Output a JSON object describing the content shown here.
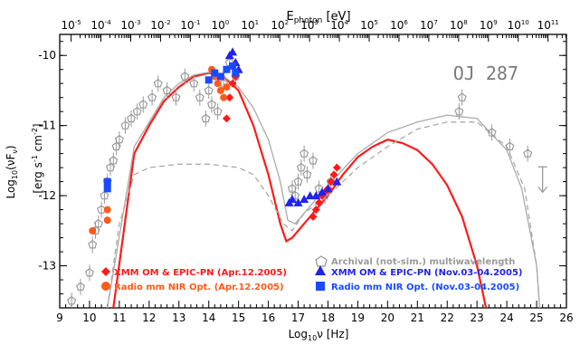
{
  "chart_data": {
    "type": "scatter",
    "title": "OJ 287",
    "xlabel": "Log10 ν [Hz]",
    "ylabel": "Log10(ν Fν) [erg s^-1 cm^-2]",
    "top_xlabel": "E_photon [eV]",
    "xlim": [
      9,
      26
    ],
    "ylim": [
      -13.6,
      -9.7
    ],
    "x_ticks": [
      9,
      10,
      11,
      12,
      13,
      14,
      15,
      16,
      17,
      18,
      19,
      20,
      21,
      22,
      23,
      24,
      25,
      26
    ],
    "y_ticks": [
      -10,
      -11,
      -12,
      -13
    ],
    "top_ticks": [
      "10^-5",
      "10^-4",
      "10^-3",
      "10^-2",
      "10^-1",
      "10^0",
      "10^1",
      "10^2",
      "10^3",
      "10^4",
      "10^5",
      "10^6",
      "10^7",
      "10^8",
      "10^9",
      "10^10",
      "10^11"
    ],
    "legend": [
      {
        "label": "Archival (not-sim.) multiwavelength",
        "color": "#9a9a9a",
        "marker": "pentagon"
      },
      {
        "label": "XMM OM & EPIC-PN (Apr.12.2005)",
        "color": "#ff1a1a",
        "marker": "diamond"
      },
      {
        "label": "Radio mm NIR Opt. (Apr.12.2005)",
        "color": "#ff5a1a",
        "marker": "circle"
      },
      {
        "label": "XMM OM & EPIC-PN (Nov.03-04.2005)",
        "color": "#2222ee",
        "marker": "triangle"
      },
      {
        "label": "Radio mm NIR Opt. (Nov.03-04.2005)",
        "color": "#1a4aff",
        "marker": "square"
      }
    ],
    "series": [
      {
        "name": "Archival (not-sim.) multiwavelength",
        "points": [
          [
            9.4,
            -13.5
          ],
          [
            9.7,
            -13.3
          ],
          [
            10.0,
            -13.1
          ],
          [
            10.1,
            -12.7
          ],
          [
            10.2,
            -12.5
          ],
          [
            10.3,
            -12.4
          ],
          [
            10.4,
            -12.2
          ],
          [
            10.5,
            -12.0
          ],
          [
            10.6,
            -11.8
          ],
          [
            10.7,
            -11.6
          ],
          [
            10.8,
            -11.5
          ],
          [
            10.9,
            -11.3
          ],
          [
            11.0,
            -11.2
          ],
          [
            11.2,
            -11.0
          ],
          [
            11.4,
            -10.9
          ],
          [
            11.6,
            -10.8
          ],
          [
            11.8,
            -10.7
          ],
          [
            12.1,
            -10.6
          ],
          [
            12.3,
            -10.4
          ],
          [
            12.6,
            -10.5
          ],
          [
            12.9,
            -10.6
          ],
          [
            13.2,
            -10.3
          ],
          [
            13.5,
            -10.4
          ],
          [
            13.7,
            -10.6
          ],
          [
            13.9,
            -10.9
          ],
          [
            14.0,
            -10.5
          ],
          [
            14.1,
            -10.7
          ],
          [
            14.3,
            -10.8
          ],
          [
            14.5,
            -10.4
          ],
          [
            14.7,
            -10.1
          ],
          [
            14.9,
            -10.3
          ],
          [
            16.8,
            -11.9
          ],
          [
            16.9,
            -12.0
          ],
          [
            17.0,
            -11.8
          ],
          [
            17.1,
            -11.6
          ],
          [
            17.2,
            -11.4
          ],
          [
            17.3,
            -11.7
          ],
          [
            17.5,
            -11.5
          ],
          [
            17.7,
            -11.9
          ],
          [
            17.9,
            -12.0
          ],
          [
            18.1,
            -11.8
          ],
          [
            22.4,
            -10.8
          ],
          [
            22.5,
            -10.6
          ],
          [
            23.5,
            -11.1
          ],
          [
            24.1,
            -11.3
          ],
          [
            24.7,
            -11.4
          ]
        ]
      },
      {
        "name": "XMM OM & EPIC-PN (Apr.12.2005)",
        "points": [
          [
            14.6,
            -10.9
          ],
          [
            14.7,
            -10.6
          ],
          [
            14.8,
            -10.4
          ],
          [
            14.9,
            -10.3
          ],
          [
            17.5,
            -12.3
          ],
          [
            17.6,
            -12.2
          ],
          [
            17.7,
            -12.1
          ],
          [
            17.8,
            -12.0
          ],
          [
            17.9,
            -11.95
          ],
          [
            18.0,
            -11.9
          ],
          [
            18.1,
            -11.8
          ],
          [
            18.2,
            -11.7
          ],
          [
            18.3,
            -11.6
          ]
        ]
      },
      {
        "name": "Radio mm NIR Opt. (Apr.12.2005)",
        "points": [
          [
            10.1,
            -12.5
          ],
          [
            10.6,
            -12.2
          ],
          [
            10.6,
            -12.35
          ],
          [
            14.1,
            -10.2
          ],
          [
            14.2,
            -10.3
          ],
          [
            14.3,
            -10.4
          ],
          [
            14.4,
            -10.5
          ],
          [
            14.5,
            -10.6
          ],
          [
            14.6,
            -10.45
          ]
        ]
      },
      {
        "name": "XMM OM & EPIC-PN (Nov.03-04.2005)",
        "points": [
          [
            14.7,
            -10.0
          ],
          [
            14.8,
            -9.95
          ],
          [
            14.9,
            -10.1
          ],
          [
            15.0,
            -10.2
          ],
          [
            16.7,
            -12.1
          ],
          [
            16.8,
            -12.05
          ],
          [
            17.0,
            -12.1
          ],
          [
            17.2,
            -12.05
          ],
          [
            17.4,
            -12.0
          ],
          [
            17.6,
            -12.0
          ],
          [
            17.8,
            -11.95
          ],
          [
            18.0,
            -11.9
          ],
          [
            18.3,
            -11.8
          ]
        ]
      },
      {
        "name": "Radio mm NIR Opt. (Nov.03-04.2005)",
        "points": [
          [
            10.6,
            -11.9
          ],
          [
            10.6,
            -11.8
          ],
          [
            14.0,
            -10.35
          ],
          [
            14.2,
            -10.25
          ],
          [
            14.4,
            -10.3
          ],
          [
            14.6,
            -10.2
          ],
          [
            14.8,
            -10.15
          ],
          [
            14.9,
            -10.25
          ]
        ]
      }
    ],
    "models": [
      {
        "color": "#ff1a1a",
        "style": "solid",
        "points": [
          [
            10.8,
            -13.6
          ],
          [
            11.5,
            -11.4
          ],
          [
            12,
            -11.0
          ],
          [
            12.5,
            -10.65
          ],
          [
            13,
            -10.45
          ],
          [
            13.5,
            -10.3
          ],
          [
            14,
            -10.25
          ],
          [
            14.5,
            -10.3
          ],
          [
            15,
            -10.5
          ],
          [
            15.5,
            -11.0
          ],
          [
            16,
            -11.7
          ],
          [
            16.4,
            -12.4
          ],
          [
            16.6,
            -12.65
          ],
          [
            16.8,
            -12.6
          ],
          [
            17.3,
            -12.35
          ],
          [
            18,
            -12.0
          ],
          [
            18.5,
            -11.7
          ],
          [
            19,
            -11.45
          ],
          [
            19.5,
            -11.3
          ],
          [
            20,
            -11.2
          ],
          [
            20.5,
            -11.25
          ],
          [
            21,
            -11.35
          ],
          [
            21.5,
            -11.55
          ],
          [
            22,
            -11.85
          ],
          [
            22.5,
            -12.3
          ],
          [
            23,
            -13.0
          ],
          [
            23.3,
            -13.6
          ]
        ]
      },
      {
        "color": "#aaaaaa",
        "style": "solid",
        "points": [
          [
            10.6,
            -13.6
          ],
          [
            11.5,
            -11.3
          ],
          [
            12,
            -10.95
          ],
          [
            12.5,
            -10.6
          ],
          [
            13,
            -10.4
          ],
          [
            13.5,
            -10.28
          ],
          [
            14,
            -10.24
          ],
          [
            14.5,
            -10.3
          ],
          [
            15,
            -10.45
          ],
          [
            15.5,
            -10.75
          ],
          [
            16,
            -11.2
          ],
          [
            16.4,
            -11.8
          ],
          [
            16.65,
            -12.35
          ],
          [
            16.9,
            -12.4
          ],
          [
            17.3,
            -12.2
          ],
          [
            18,
            -11.85
          ],
          [
            19,
            -11.4
          ],
          [
            20,
            -11.1
          ],
          [
            21,
            -10.95
          ],
          [
            22,
            -10.85
          ],
          [
            23,
            -10.9
          ],
          [
            24,
            -11.35
          ],
          [
            24.5,
            -11.9
          ],
          [
            25,
            -13.0
          ],
          [
            25.1,
            -13.6
          ]
        ]
      },
      {
        "color": "#aaaaaa",
        "style": "dashed",
        "points": [
          [
            10.6,
            -13.6
          ],
          [
            11,
            -12.4
          ],
          [
            11.5,
            -11.7
          ],
          [
            12,
            -11.6
          ],
          [
            13,
            -11.55
          ],
          [
            14,
            -11.55
          ],
          [
            15,
            -11.6
          ],
          [
            15.5,
            -11.7
          ],
          [
            16,
            -12.0
          ],
          [
            16.5,
            -12.4
          ],
          [
            16.8,
            -12.5
          ],
          [
            17.2,
            -12.25
          ],
          [
            18,
            -12.0
          ],
          [
            19,
            -11.6
          ],
          [
            20,
            -11.3
          ],
          [
            21,
            -11.05
          ],
          [
            22,
            -10.95
          ],
          [
            23,
            -10.95
          ],
          [
            24,
            -11.3
          ],
          [
            24.6,
            -11.9
          ],
          [
            25,
            -13.0
          ],
          [
            25.1,
            -13.6
          ]
        ]
      }
    ],
    "upper_limits": [
      [
        25.2,
        -11.95
      ]
    ]
  }
}
